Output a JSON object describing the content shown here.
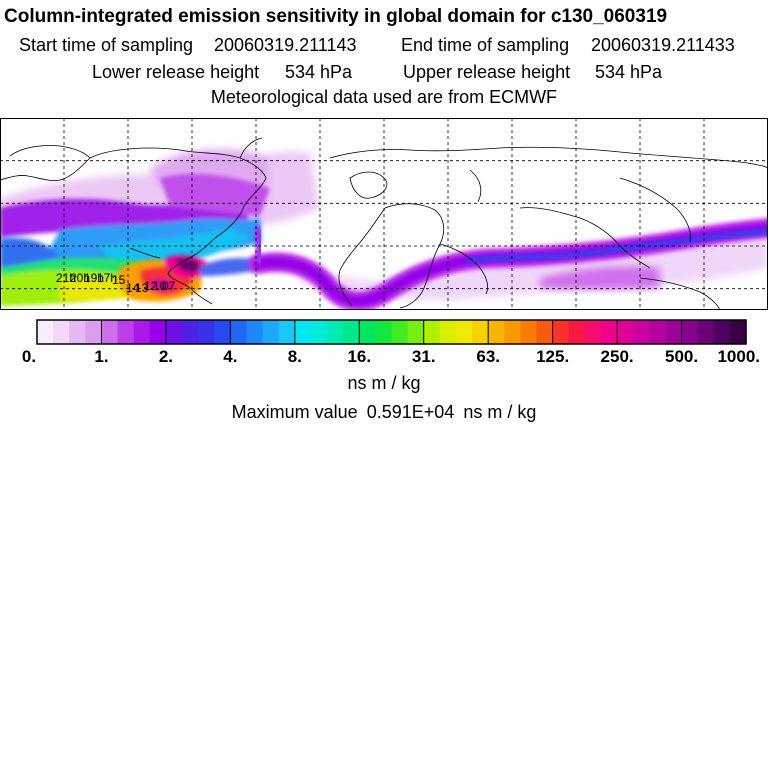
{
  "header": {
    "title": "Column-integrated emission sensitivity in global domain for c130_060319",
    "start_label": "Start time of sampling",
    "start_value": "20060319.211143",
    "end_label": "End time of sampling",
    "end_value": "20060319.211433",
    "lower_label": "Lower release height",
    "lower_value": "534 hPa",
    "upper_label": "Upper release height",
    "upper_value": "534 hPa",
    "met_line": "Meteorological data used are from ECMWF"
  },
  "colorbar": {
    "tick_labels": [
      "0.",
      "1.",
      "2.",
      "4.",
      "8.",
      "16.",
      "31.",
      "63.",
      "125.",
      "250.",
      "500.",
      "1000."
    ],
    "colors": [
      "#f8eefa",
      "#f0d8f6",
      "#e6b8f2",
      "#dc9cf0",
      "#cc70ec",
      "#bb40ea",
      "#ac18ea",
      "#9600e8",
      "#7010e8",
      "#5020e6",
      "#3a30e8",
      "#2848f0",
      "#2068f4",
      "#1e88f6",
      "#20a8f8",
      "#18c8fa",
      "#00e8f4",
      "#00ecd8",
      "#00eab4",
      "#00e88a",
      "#00e660",
      "#10e840",
      "#40ec20",
      "#78ee10",
      "#b0f000",
      "#d8f000",
      "#f0ea00",
      "#f8d200",
      "#f8b400",
      "#f89a00",
      "#f87c00",
      "#f85a10",
      "#f83428",
      "#f81848",
      "#f80c70",
      "#f0008c",
      "#e00098",
      "#cc00a0",
      "#b600a0",
      "#a0009a",
      "#880090",
      "#6c0078",
      "#500060",
      "#3a0044"
    ],
    "units": "ns m / kg"
  },
  "maximum": {
    "label": "Maximum value",
    "value": "0.591E+04",
    "units": "ns m / kg"
  },
  "chart_data": {
    "type": "heatmap",
    "title": "Column-integrated emission sensitivity in global domain for c130_060319",
    "scale": "logarithmic",
    "units": "ns m / kg",
    "legend_levels": [
      0,
      1,
      2,
      4,
      8,
      16,
      31,
      63,
      125,
      250,
      500,
      1000
    ],
    "maximum_value": 5910,
    "x_range_deg_lon": [
      -180,
      180
    ],
    "y_range_deg_lat": [
      -10,
      80
    ],
    "gridlines": "dashed, every 30 deg longitude and 20 deg latitude",
    "plume_regions": [
      {
        "region": "Gulf of Mexico / Mexico receptor",
        "level": "250-1000"
      },
      {
        "region": "Eastern Pacific tropics",
        "level": "16-125"
      },
      {
        "region": "North America / Canada",
        "level": "1-8"
      },
      {
        "region": "Subtropical jet across Atlantic, Africa, Asia, Pacific",
        "level": "2-16"
      }
    ],
    "annotations": [
      "21h",
      "20h",
      "19h",
      "17h",
      "15",
      "14",
      "13",
      "12",
      "10",
      "07"
    ]
  }
}
